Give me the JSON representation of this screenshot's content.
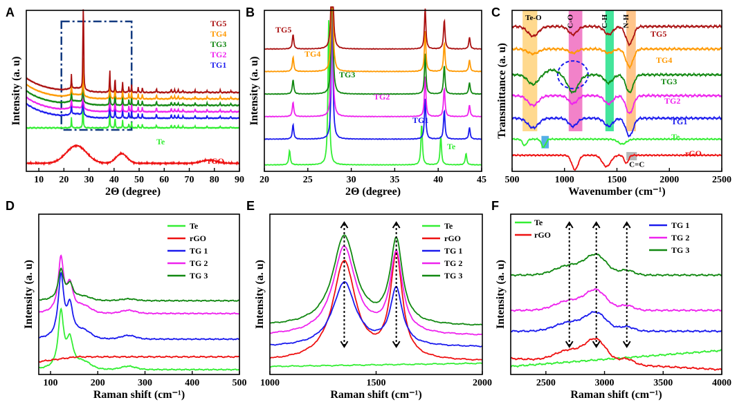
{
  "chart_data": [
    {
      "panel": "A",
      "type": "line",
      "xlabel": "2Θ (degree)",
      "ylabel": "Intensity (a. u)",
      "xlim": [
        5,
        90
      ],
      "ylim": [
        0,
        1
      ],
      "xticks": [
        10,
        20,
        30,
        40,
        50,
        60,
        70,
        80,
        90
      ],
      "inset_box": [
        19,
        47
      ],
      "series": [
        {
          "name": "rGO",
          "label": "rGO",
          "color": "#ee1111",
          "offset": 0.05,
          "kind": "rgo"
        },
        {
          "name": "Te",
          "label": "Te",
          "color": "#33ee33",
          "offset": 0.27,
          "kind": "te"
        },
        {
          "name": "TG1",
          "label": "TG1",
          "color": "#1a1aee",
          "offset": 0.33,
          "kind": "tg"
        },
        {
          "name": "TG2",
          "label": "TG2",
          "color": "#ee22ee",
          "offset": 0.37,
          "kind": "tg"
        },
        {
          "name": "TG3",
          "label": "TG3",
          "color": "#118811",
          "offset": 0.41,
          "kind": "tg"
        },
        {
          "name": "TG4",
          "label": "TG4",
          "color": "#ff9900",
          "offset": 0.45,
          "kind": "tg"
        },
        {
          "name": "TG5",
          "label": "TG5",
          "color": "#aa1111",
          "offset": 0.49,
          "kind": "tg"
        }
      ]
    },
    {
      "panel": "B",
      "type": "line",
      "xlabel": "2Θ (degree)",
      "ylabel": "Intensity (a. u)",
      "xlim": [
        20,
        45
      ],
      "ylim": [
        0,
        1
      ],
      "xticks": [
        20,
        25,
        30,
        35,
        40,
        45
      ],
      "series": [
        {
          "name": "Te",
          "label": "Te",
          "color": "#33ee33",
          "offset": 0.04
        },
        {
          "name": "TG1",
          "label": "TG1",
          "color": "#1a1aee",
          "offset": 0.2
        },
        {
          "name": "TG2",
          "label": "TG2",
          "color": "#ee22ee",
          "offset": 0.34
        },
        {
          "name": "TG3",
          "label": "TG3",
          "color": "#118811",
          "offset": 0.48
        },
        {
          "name": "TG4",
          "label": "TG4",
          "color": "#ff9900",
          "offset": 0.62
        },
        {
          "name": "TG5",
          "label": "TG5",
          "color": "#aa1111",
          "offset": 0.76
        }
      ]
    },
    {
      "panel": "C",
      "type": "line",
      "xlabel": "Wavenumber (cm⁻¹)",
      "ylabel": "Transmittance (a. u)",
      "xlim": [
        500,
        2500
      ],
      "ylim": [
        0,
        1
      ],
      "xticks": [
        500,
        1000,
        1500,
        2000,
        2500
      ],
      "bands": [
        {
          "label": "Te-O",
          "from": 600,
          "to": 740,
          "color": "#ffd27a"
        },
        {
          "label": "C-O",
          "from": 1040,
          "to": 1170,
          "color": "#f06cbf"
        },
        {
          "label": "C-H",
          "from": 1390,
          "to": 1470,
          "color": "#22e08a"
        },
        {
          "label": "N-H",
          "from": 1590,
          "to": 1680,
          "color": "#ffbb77"
        }
      ],
      "annotations": [
        "C=C"
      ],
      "series": [
        {
          "name": "rGO",
          "label": "rGO",
          "color": "#ee1111",
          "offset": 0.1
        },
        {
          "name": "Te",
          "label": "Te",
          "color": "#33ee33",
          "offset": 0.2
        },
        {
          "name": "TG1",
          "label": "TG1",
          "color": "#1a1aee",
          "offset": 0.33
        },
        {
          "name": "TG2",
          "label": "TG2",
          "color": "#ee22ee",
          "offset": 0.47
        },
        {
          "name": "TG3",
          "label": "TG3",
          "color": "#118811",
          "offset": 0.6
        },
        {
          "name": "TG4",
          "label": "TG4",
          "color": "#ff9900",
          "offset": 0.76
        },
        {
          "name": "TG5",
          "label": "TG5",
          "color": "#aa1111",
          "offset": 0.9
        }
      ]
    },
    {
      "panel": "D",
      "type": "line",
      "xlabel": "Raman shift (cm⁻¹)",
      "ylabel": "Intensity (a. u)",
      "xlim": [
        75,
        500
      ],
      "ylim": [
        0,
        1
      ],
      "xticks": [
        100,
        200,
        300,
        400,
        500
      ],
      "series": [
        {
          "name": "Te",
          "label": "Te",
          "color": "#33ee33",
          "offset": 0.03,
          "peak": 0.5
        },
        {
          "name": "rGO",
          "label": "rGO",
          "color": "#ee1111",
          "offset": 0.08,
          "peak": 0
        },
        {
          "name": "TG 1",
          "label": "TG 1",
          "color": "#1a1aee",
          "offset": 0.22,
          "peak": 0.55
        },
        {
          "name": "TG 2",
          "label": "TG 2",
          "color": "#ee22ee",
          "offset": 0.38,
          "peak": 0.48
        },
        {
          "name": "TG 3",
          "label": "TG 3",
          "color": "#118811",
          "offset": 0.46,
          "peak": 0.27
        }
      ]
    },
    {
      "panel": "E",
      "type": "line",
      "xlabel": "Raman shift (cm⁻¹)",
      "ylabel": "Intensity (a. u)",
      "xlim": [
        1000,
        2000
      ],
      "ylim": [
        0,
        1
      ],
      "xticks": [
        1000,
        1500,
        2000
      ],
      "peaks": [
        1350,
        1595
      ],
      "series": [
        {
          "name": "Te",
          "label": "Te",
          "color": "#33ee33",
          "offset": 0.05,
          "d": 0,
          "g": 0
        },
        {
          "name": "rGO",
          "label": "rGO",
          "color": "#ee1111",
          "offset": 0.08,
          "d": 0.62,
          "g": 0.64
        },
        {
          "name": "TG 1",
          "label": "TG 1",
          "color": "#1a1aee",
          "offset": 0.17,
          "d": 0.4,
          "g": 0.35
        },
        {
          "name": "TG 2",
          "label": "TG 2",
          "color": "#ee22ee",
          "offset": 0.24,
          "d": 0.55,
          "g": 0.5
        },
        {
          "name": "TG 3",
          "label": "TG 3",
          "color": "#118811",
          "offset": 0.3,
          "d": 0.56,
          "g": 0.52
        }
      ]
    },
    {
      "panel": "F",
      "type": "line",
      "xlabel": "Raman shift (cm⁻¹)",
      "ylabel": "Intensity (a. u)",
      "xlim": [
        2200,
        4000
      ],
      "ylim": [
        0,
        1
      ],
      "xticks": [
        2500,
        3000,
        3500,
        4000
      ],
      "peaks": [
        2700,
        2930,
        3190
      ],
      "series": [
        {
          "name": "Te",
          "label": "Te",
          "color": "#33ee33",
          "offset": 0.05,
          "trend": 0.1,
          "amp": 0
        },
        {
          "name": "rGO",
          "label": "rGO",
          "color": "#ee1111",
          "offset": 0.1,
          "trend": -0.07,
          "amp": 0.14
        },
        {
          "name": "TG 1",
          "label": "TG 1",
          "color": "#1a1aee",
          "offset": 0.27,
          "trend": 0,
          "amp": 0.11
        },
        {
          "name": "TG 2",
          "label": "TG 2",
          "color": "#ee22ee",
          "offset": 0.4,
          "trend": 0,
          "amp": 0.12
        },
        {
          "name": "TG 3",
          "label": "TG 3",
          "color": "#118811",
          "offset": 0.62,
          "trend": 0,
          "amp": 0.12
        }
      ]
    }
  ]
}
